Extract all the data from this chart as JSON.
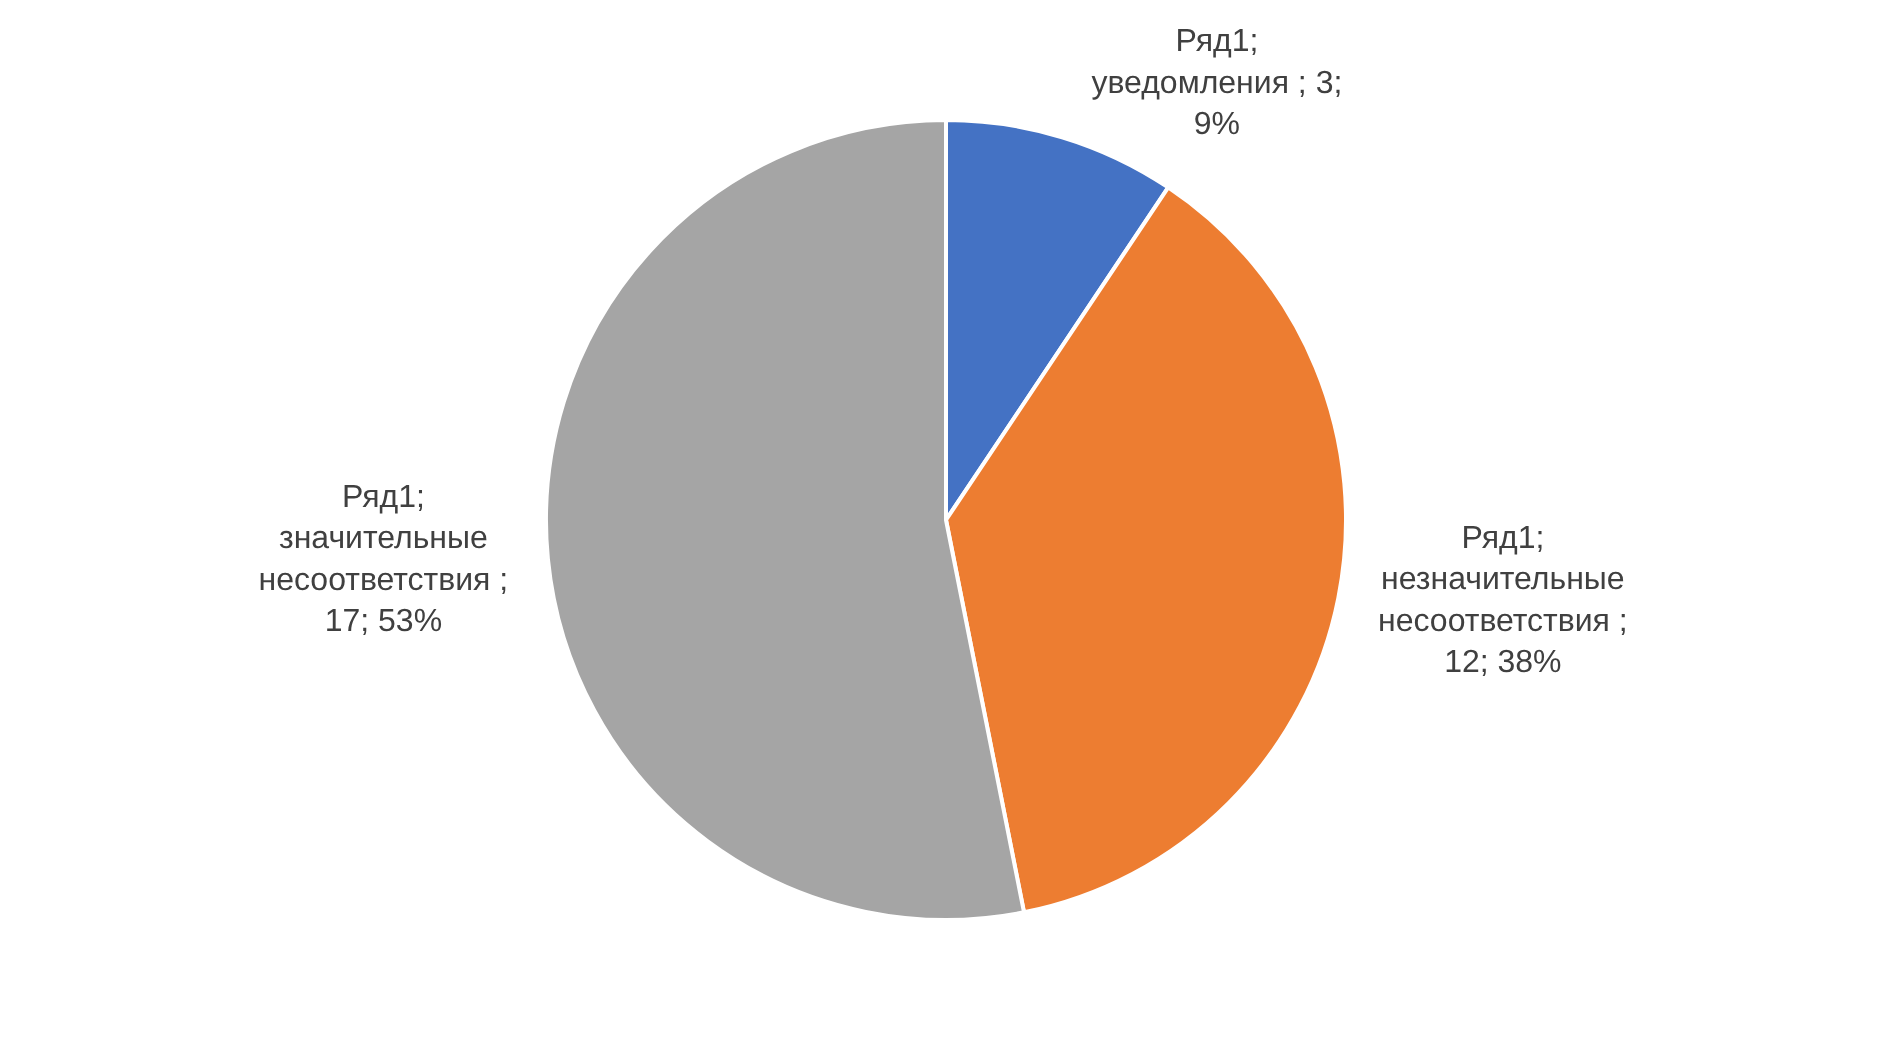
{
  "chart_data": {
    "type": "pie",
    "categories": [
      null,
      null,
      null
    ],
    "series": [
      {
        "values": [
          3,
          12,
          17
        ],
        "value_labels": [
          "Ряд1; уведомления ; 3; 9%",
          "Ряд1; незначительные несоответствия ; 12; 38%",
          "Ряд1; значительные несоответствия ; 17; 53%"
        ]
      }
    ],
    "colors": [
      "#4472c4",
      "#ed7d31",
      "#a5a5a5"
    ],
    "legend": false
  }
}
